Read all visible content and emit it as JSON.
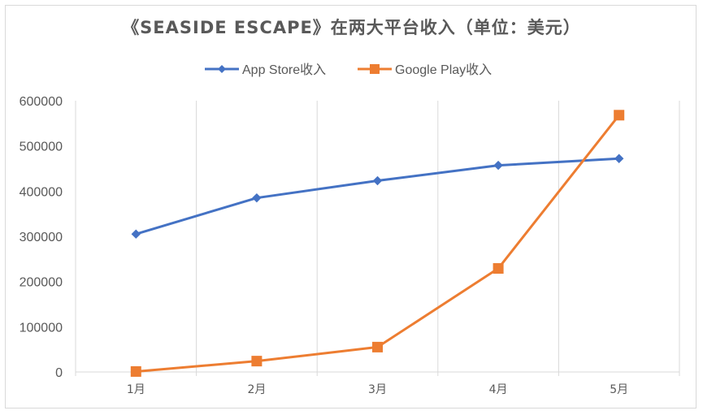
{
  "chart_data": {
    "type": "line",
    "title": "《SEASIDE ESCAPE》在两大平台收入（单位：美元）",
    "categories": [
      "1月",
      "2月",
      "3月",
      "4月",
      "5月"
    ],
    "series": [
      {
        "name": "App Store收入",
        "color": "#4472c4",
        "marker": "diamond",
        "values": [
          305000,
          385000,
          423000,
          457000,
          472000
        ]
      },
      {
        "name": "Google Play收入",
        "color": "#ed7d31",
        "marker": "square",
        "values": [
          1000,
          24000,
          55000,
          229000,
          568000
        ]
      }
    ],
    "ylim": [
      0,
      600000
    ],
    "yticks": [
      "0",
      "100000",
      "200000",
      "300000",
      "400000",
      "500000",
      "600000"
    ],
    "grid": "vertical",
    "legend": "top"
  }
}
